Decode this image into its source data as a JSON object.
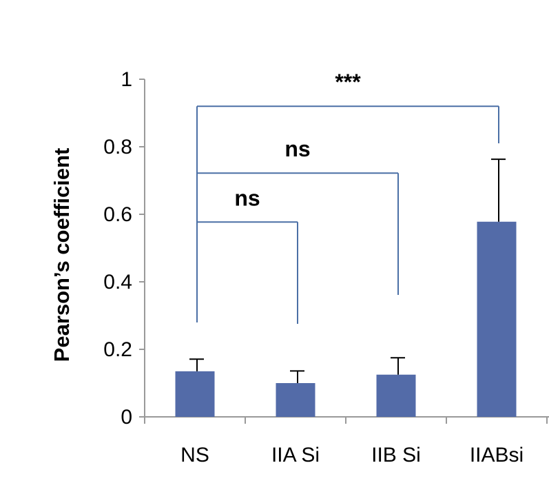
{
  "chart_data": {
    "type": "bar",
    "title": "",
    "xlabel": "",
    "ylabel": "Pearson’s coefficient",
    "ylim": [
      0,
      1
    ],
    "yticks": [
      "0",
      "0.2",
      "0.4",
      "0.6",
      "0.8",
      "1"
    ],
    "ytick_values": [
      0,
      0.2,
      0.4,
      0.6,
      0.8,
      1
    ],
    "categories": [
      "NS",
      "IIA Si",
      "IIB Si",
      "IIABsi"
    ],
    "values": [
      0.135,
      0.1,
      0.125,
      0.578
    ],
    "errors": [
      0.036,
      0.036,
      0.05,
      0.185
    ],
    "grid": false,
    "colors": {
      "bar": "#536BA8",
      "bracket": "#4A6FA5",
      "axis": "#999999",
      "error": "#000000"
    },
    "significance": [
      {
        "from": "NS",
        "to": "IIA Si",
        "label": "ns",
        "level": 0.577
      },
      {
        "from": "NS",
        "to": "IIB Si",
        "label": "ns",
        "level": 0.722
      },
      {
        "from": "NS",
        "to": "IIABsi",
        "label": "***",
        "level": 0.92
      }
    ]
  }
}
